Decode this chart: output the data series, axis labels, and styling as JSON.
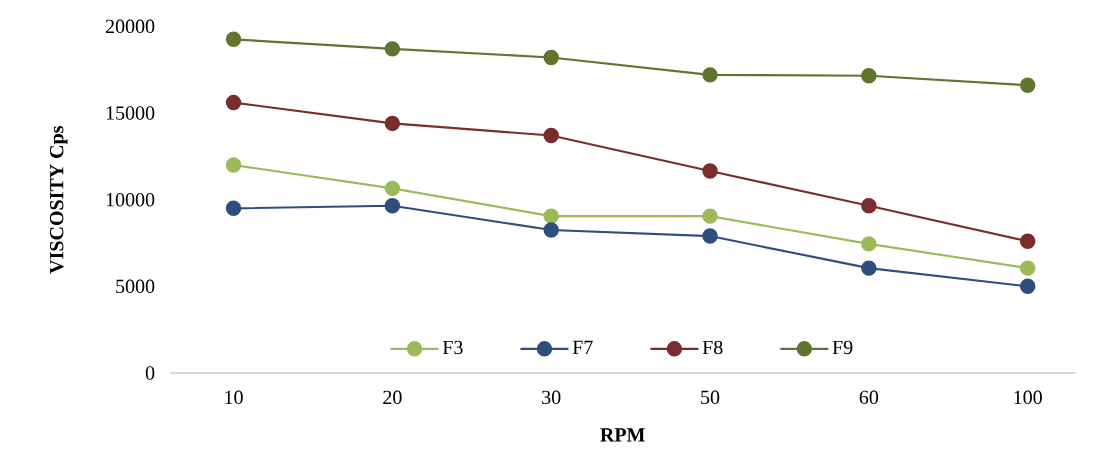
{
  "chart_data": {
    "type": "line",
    "xlabel": "RPM",
    "ylabel": "VISCOSITY Cps",
    "categories": [
      "10",
      "20",
      "30",
      "50",
      "60",
      "100"
    ],
    "series": [
      {
        "name": "F3",
        "color": "#9bbb59",
        "values": [
          12000,
          10650,
          9050,
          9050,
          7450,
          6050
        ]
      },
      {
        "name": "F7",
        "color": "#2e4f7e",
        "values": [
          9500,
          9650,
          8250,
          7900,
          6050,
          5000
        ]
      },
      {
        "name": "F8",
        "color": "#7b2c2c",
        "values": [
          15600,
          14400,
          13700,
          11650,
          9650,
          7600
        ]
      },
      {
        "name": "F9",
        "color": "#5f7530",
        "values": [
          19250,
          18700,
          18200,
          17200,
          17150,
          16600
        ]
      }
    ],
    "ylim": [
      0,
      20000
    ],
    "yticks": [
      0,
      5000,
      10000,
      15000,
      20000
    ],
    "grid": false,
    "legend": "bottom",
    "marker": "circle",
    "line_style": "solid"
  }
}
